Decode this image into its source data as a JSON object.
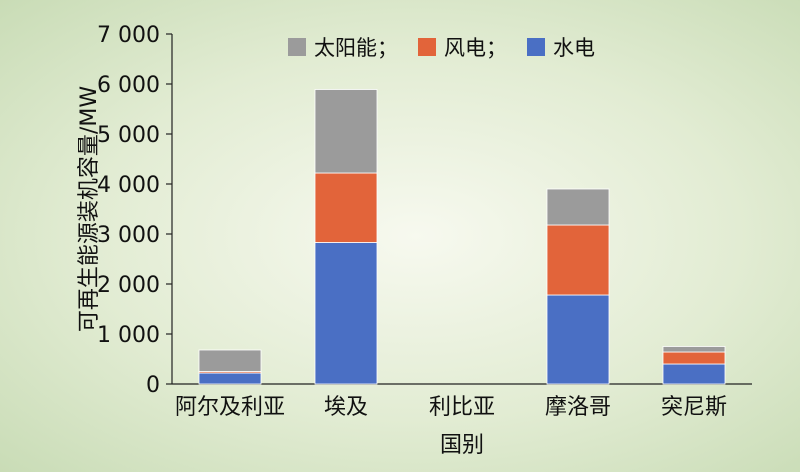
{
  "chart_data": {
    "type": "bar",
    "stacked": true,
    "title": "",
    "xlabel": "国别",
    "ylabel": "可再生能源装机容量/MW",
    "ylim": [
      0,
      7000
    ],
    "yticks": [
      0,
      1000,
      2000,
      3000,
      4000,
      5000,
      6000,
      7000
    ],
    "ytick_labels": [
      "0",
      "1 000",
      "2 000",
      "3 000",
      "4 000",
      "5 000",
      "6 000",
      "7 000"
    ],
    "categories": [
      "阿尔及利亚",
      "埃及",
      "利比亚",
      "摩洛哥",
      "突尼斯"
    ],
    "series": [
      {
        "name": "水电",
        "color": "#4a6fc4",
        "values": [
          220,
          2830,
          0,
          1780,
          400
        ]
      },
      {
        "name": "风电",
        "color": "#e2643a",
        "values": [
          30,
          1390,
          0,
          1400,
          240
        ]
      },
      {
        "name": "太阳能",
        "color": "#9b9b9b",
        "values": [
          430,
          1670,
          0,
          720,
          110
        ]
      }
    ],
    "legend": {
      "position": "top-center",
      "items": [
        {
          "label": "太阳能；",
          "color": "#9b9b9b"
        },
        {
          "label": "风电；",
          "color": "#e2643a"
        },
        {
          "label": "水电",
          "color": "#4a6fc4"
        }
      ]
    },
    "grid": false
  }
}
